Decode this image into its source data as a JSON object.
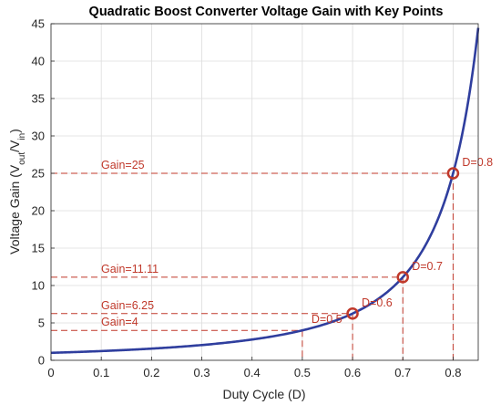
{
  "chart_data": {
    "type": "line",
    "title": "Quadratic Boost Converter Voltage Gain with Key Points",
    "xlabel": "Duty Cycle (D)",
    "ylabel": {
      "prefix": "Voltage Gain (V",
      "sub1": "out",
      "mid": "/V",
      "sub2": "in",
      "suffix": ")"
    },
    "xlim": [
      0,
      0.85
    ],
    "ylim": [
      0,
      45
    ],
    "xticks": [
      "0",
      "0.1",
      "0.2",
      "0.3",
      "0.4",
      "0.5",
      "0.6",
      "0.7",
      "0.8"
    ],
    "yticks": [
      "0",
      "5",
      "10",
      "15",
      "20",
      "25",
      "30",
      "35",
      "40",
      "45"
    ],
    "grid": true,
    "series": [
      {
        "formula": "1/(1-D)^2",
        "x_range": [
          0,
          0.85
        ],
        "color": "#2f3e9e"
      }
    ],
    "key_points": [
      {
        "x": 0.5,
        "y": 4,
        "d_label": "D=0.5",
        "gain_label": "Gain=4",
        "marker": false
      },
      {
        "x": 0.6,
        "y": 6.25,
        "d_label": "D=0.6",
        "gain_label": "Gain=6.25",
        "marker": true
      },
      {
        "x": 0.7,
        "y": 11.11,
        "d_label": "D=0.7",
        "gain_label": "Gain=11.11",
        "marker": true
      },
      {
        "x": 0.8,
        "y": 25,
        "d_label": "D=0.8",
        "gain_label": "Gain=25",
        "marker": true
      }
    ],
    "annotation_color": "#c0392b"
  }
}
